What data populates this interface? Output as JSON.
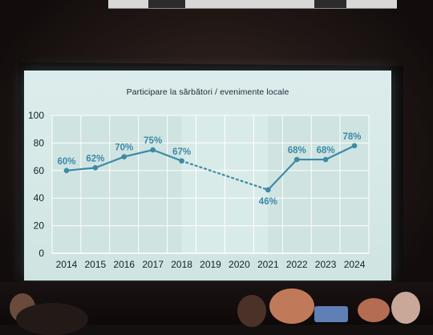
{
  "chart_data": {
    "type": "line",
    "title": "Participare la sărbători / evenimente locale",
    "categories": [
      "2014",
      "2015",
      "2016",
      "2017",
      "2018",
      "2019",
      "2020",
      "2021",
      "2022",
      "2023",
      "2024"
    ],
    "series": [
      {
        "values": [
          60,
          62,
          70,
          75,
          67,
          null,
          null,
          46,
          68,
          68,
          78
        ],
        "labels": [
          "60%",
          "62%",
          "70%",
          "75%",
          "67%",
          "",
          "",
          "46%",
          "68%",
          "68%",
          "78%"
        ],
        "dotted_gap_from": "2018",
        "dotted_gap_to": "2021"
      }
    ],
    "y_ticks": [
      "0",
      "20",
      "40",
      "60",
      "80",
      "100"
    ],
    "ylim": [
      0,
      100
    ],
    "grid": true,
    "legend": "none",
    "colors": {
      "line": "#3b8aa6",
      "grid": "#ffffff",
      "plot_bg": "#cfe3e1",
      "plot_bg_highlight": "#d9ebe9"
    }
  }
}
